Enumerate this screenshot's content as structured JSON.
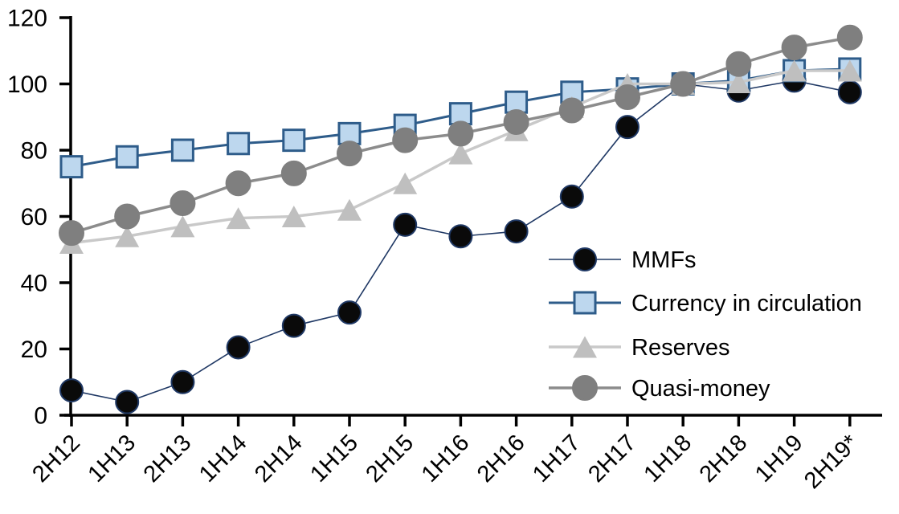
{
  "chart_data": {
    "type": "line",
    "title": "",
    "xlabel": "",
    "ylabel": "",
    "grid": false,
    "ylim": [
      0,
      120
    ],
    "yticks": [
      0,
      20,
      40,
      60,
      80,
      100,
      120
    ],
    "categories": [
      "2H12",
      "1H13",
      "2H13",
      "1H14",
      "2H14",
      "1H15",
      "2H15",
      "1H16",
      "2H16",
      "1H17",
      "2H17",
      "1H18",
      "2H18",
      "1H19",
      "2H19*"
    ],
    "series": [
      {
        "name": "MMFs",
        "marker": "circle",
        "values": [
          7.5,
          4,
          10,
          20.5,
          27,
          31,
          57.5,
          54,
          55.5,
          66,
          87,
          100,
          98,
          101,
          97.5
        ],
        "line_color": "#1F3864",
        "line_width": 1.6,
        "marker_fill": "#0A0A0A",
        "marker_edge": "#1F3864",
        "marker_size": 28
      },
      {
        "name": "Currency in circulation",
        "marker": "square",
        "values": [
          75,
          78,
          80,
          82,
          83,
          85,
          87.5,
          91,
          94.5,
          97.5,
          98.5,
          100,
          101,
          104,
          104.5
        ],
        "line_color": "#2E5C8A",
        "line_width": 3,
        "marker_fill": "#BDD7EE",
        "marker_edge": "#2E5C8A",
        "marker_size": 26
      },
      {
        "name": "Reserves",
        "marker": "triangle",
        "values": [
          52,
          54,
          57,
          59.5,
          60,
          62,
          70,
          79,
          86,
          93,
          100,
          100,
          100.5,
          104,
          104
        ],
        "line_color": "#C9C9C9",
        "line_width": 3.5,
        "marker_fill": "#BFBFBF",
        "marker_edge": "#BFBFBF",
        "marker_size": 30
      },
      {
        "name": "Quasi-money",
        "marker": "circle",
        "values": [
          55,
          60,
          64,
          70,
          73,
          79,
          83,
          85,
          88.5,
          92,
          96,
          100,
          106,
          111,
          114
        ],
        "line_color": "#8C8C8C",
        "line_width": 3.5,
        "marker_fill": "#7F7F7F",
        "marker_edge": "#7F7F7F",
        "marker_size": 30
      }
    ],
    "legend": {
      "position": "center-right",
      "entries": [
        "MMFs",
        "Currency in circulation",
        "Reserves",
        "Quasi-money"
      ]
    },
    "axis_color": "#000000",
    "background_color": "#FFFFFF"
  }
}
